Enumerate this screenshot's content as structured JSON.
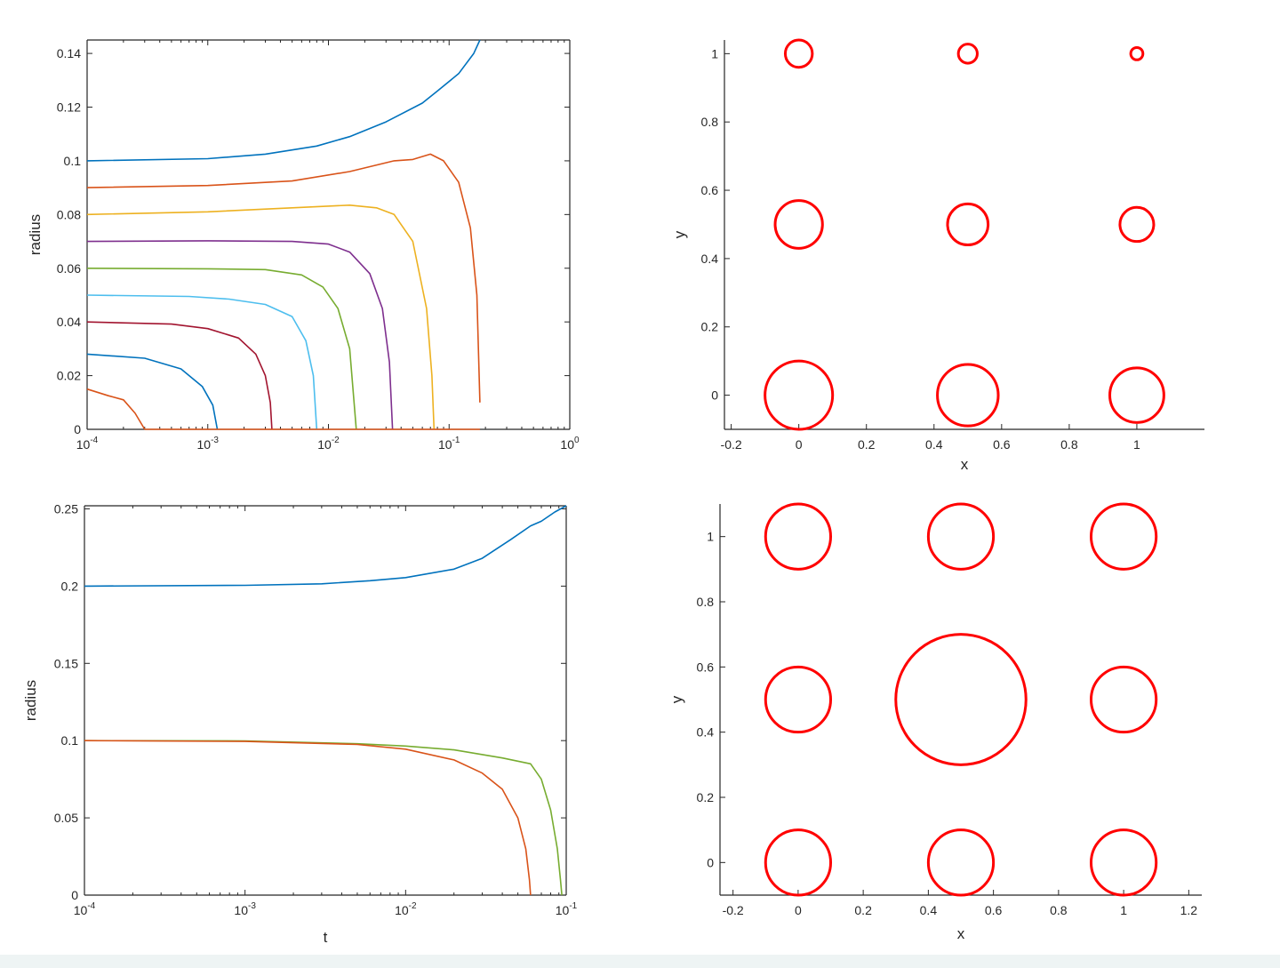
{
  "chart_data": [
    {
      "type": "line",
      "xscale": "log",
      "xlim": [
        0.0001,
        1
      ],
      "ylim": [
        0,
        0.145
      ],
      "xlabel": "",
      "ylabel": "radius",
      "xticks": [
        {
          "value": 0.0001,
          "base": "10",
          "exp": "-4"
        },
        {
          "value": 0.001,
          "base": "10",
          "exp": "-3"
        },
        {
          "value": 0.01,
          "base": "10",
          "exp": "-2"
        },
        {
          "value": 0.1,
          "base": "10",
          "exp": "-1"
        },
        {
          "value": 1,
          "base": "10",
          "exp": "0"
        }
      ],
      "yticks": [
        {
          "value": 0,
          "label": "0"
        },
        {
          "value": 0.02,
          "label": "0.02"
        },
        {
          "value": 0.04,
          "label": "0.04"
        },
        {
          "value": 0.06,
          "label": "0.06"
        },
        {
          "value": 0.08,
          "label": "0.08"
        },
        {
          "value": 0.1,
          "label": "0.1"
        },
        {
          "value": 0.12,
          "label": "0.12"
        },
        {
          "value": 0.14,
          "label": "0.14"
        }
      ],
      "series": [
        {
          "color": "#0072bd",
          "points": [
            [
              0.0001,
              0.1
            ],
            [
              0.001,
              0.1008
            ],
            [
              0.003,
              0.1025
            ],
            [
              0.008,
              0.1055
            ],
            [
              0.015,
              0.109
            ],
            [
              0.03,
              0.1145
            ],
            [
              0.06,
              0.1215
            ],
            [
              0.08,
              0.126
            ],
            [
              0.12,
              0.1325
            ],
            [
              0.16,
              0.14
            ],
            [
              0.18,
              0.145
            ]
          ]
        },
        {
          "color": "#d95319",
          "points": [
            [
              0.0001,
              0.09
            ],
            [
              0.001,
              0.0908
            ],
            [
              0.005,
              0.0925
            ],
            [
              0.015,
              0.096
            ],
            [
              0.035,
              0.1
            ],
            [
              0.05,
              0.1005
            ],
            [
              0.07,
              0.1025
            ],
            [
              0.09,
              0.1
            ],
            [
              0.12,
              0.092
            ],
            [
              0.15,
              0.075
            ],
            [
              0.17,
              0.05
            ],
            [
              0.18,
              0.01
            ]
          ]
        },
        {
          "color": "#edb120",
          "points": [
            [
              0.0001,
              0.08
            ],
            [
              0.001,
              0.081
            ],
            [
              0.005,
              0.0825
            ],
            [
              0.015,
              0.0835
            ],
            [
              0.025,
              0.0825
            ],
            [
              0.035,
              0.08
            ],
            [
              0.05,
              0.07
            ],
            [
              0.065,
              0.045
            ],
            [
              0.072,
              0.02
            ],
            [
              0.075,
              0
            ]
          ]
        },
        {
          "color": "#7e2f8e",
          "points": [
            [
              0.0001,
              0.07
            ],
            [
              0.001,
              0.0702
            ],
            [
              0.005,
              0.07
            ],
            [
              0.01,
              0.069
            ],
            [
              0.015,
              0.066
            ],
            [
              0.022,
              0.058
            ],
            [
              0.028,
              0.045
            ],
            [
              0.032,
              0.025
            ],
            [
              0.034,
              0
            ]
          ]
        },
        {
          "color": "#77ac30",
          "points": [
            [
              0.0001,
              0.06
            ],
            [
              0.001,
              0.0598
            ],
            [
              0.003,
              0.0595
            ],
            [
              0.006,
              0.0575
            ],
            [
              0.009,
              0.053
            ],
            [
              0.012,
              0.045
            ],
            [
              0.015,
              0.03
            ],
            [
              0.017,
              0
            ]
          ]
        },
        {
          "color": "#4dbeee",
          "points": [
            [
              0.0001,
              0.05
            ],
            [
              0.0007,
              0.0495
            ],
            [
              0.0015,
              0.0485
            ],
            [
              0.003,
              0.0465
            ],
            [
              0.005,
              0.042
            ],
            [
              0.0065,
              0.033
            ],
            [
              0.0075,
              0.02
            ],
            [
              0.008,
              0
            ]
          ]
        },
        {
          "color": "#a2142f",
          "points": [
            [
              0.0001,
              0.04
            ],
            [
              0.0005,
              0.0392
            ],
            [
              0.001,
              0.0375
            ],
            [
              0.0018,
              0.034
            ],
            [
              0.0025,
              0.028
            ],
            [
              0.003,
              0.02
            ],
            [
              0.0033,
              0.01
            ],
            [
              0.0034,
              0
            ]
          ]
        },
        {
          "color": "#0072bd",
          "points": [
            [
              0.0001,
              0.028
            ],
            [
              0.0003,
              0.0265
            ],
            [
              0.0006,
              0.0225
            ],
            [
              0.0009,
              0.016
            ],
            [
              0.0011,
              0.009
            ],
            [
              0.0012,
              0
            ]
          ]
        },
        {
          "color": "#d95319",
          "points": [
            [
              0.0001,
              0.015
            ],
            [
              0.00015,
              0.0125
            ],
            [
              0.0002,
              0.011
            ],
            [
              0.00025,
              0.006
            ],
            [
              0.0003,
              0
            ]
          ]
        },
        {
          "color": "#d95319",
          "points": [
            [
              0.0003,
              0
            ],
            [
              0.18,
              0
            ]
          ]
        }
      ]
    },
    {
      "type": "scatter",
      "xlim": [
        -0.22,
        1.2
      ],
      "ylim": [
        -0.1,
        1.04
      ],
      "xlabel": "x",
      "ylabel": "y",
      "xticks": [
        {
          "value": -0.2,
          "label": "-0.2"
        },
        {
          "value": 0,
          "label": "0"
        },
        {
          "value": 0.2,
          "label": "0.2"
        },
        {
          "value": 0.4,
          "label": "0.4"
        },
        {
          "value": 0.6,
          "label": "0.6"
        },
        {
          "value": 0.8,
          "label": "0.8"
        },
        {
          "value": 1,
          "label": "1"
        }
      ],
      "yticks": [
        {
          "value": 0,
          "label": "0"
        },
        {
          "value": 0.2,
          "label": "0.2"
        },
        {
          "value": 0.4,
          "label": "0.4"
        },
        {
          "value": 0.6,
          "label": "0.6"
        },
        {
          "value": 0.8,
          "label": "0.8"
        },
        {
          "value": 1,
          "label": "1"
        }
      ],
      "color": "#ff0000",
      "circles": [
        {
          "cx": 0,
          "cy": 0,
          "r": 0.1
        },
        {
          "cx": 0.5,
          "cy": 0,
          "r": 0.09
        },
        {
          "cx": 1,
          "cy": 0,
          "r": 0.08
        },
        {
          "cx": 0,
          "cy": 0.5,
          "r": 0.07
        },
        {
          "cx": 0.5,
          "cy": 0.5,
          "r": 0.06
        },
        {
          "cx": 1,
          "cy": 0.5,
          "r": 0.05
        },
        {
          "cx": 0,
          "cy": 1,
          "r": 0.04
        },
        {
          "cx": 0.5,
          "cy": 1,
          "r": 0.028
        },
        {
          "cx": 1,
          "cy": 1,
          "r": 0.018
        }
      ]
    },
    {
      "type": "line",
      "xscale": "log",
      "xlim": [
        0.0001,
        0.1
      ],
      "ylim": [
        0,
        0.252
      ],
      "xlabel": "t",
      "ylabel": "radius",
      "xticks": [
        {
          "value": 0.0001,
          "base": "10",
          "exp": "-4"
        },
        {
          "value": 0.001,
          "base": "10",
          "exp": "-3"
        },
        {
          "value": 0.01,
          "base": "10",
          "exp": "-2"
        },
        {
          "value": 0.1,
          "base": "10",
          "exp": "-1"
        }
      ],
      "yticks": [
        {
          "value": 0,
          "label": "0"
        },
        {
          "value": 0.05,
          "label": "0.05"
        },
        {
          "value": 0.1,
          "label": "0.1"
        },
        {
          "value": 0.15,
          "label": "0.15"
        },
        {
          "value": 0.2,
          "label": "0.2"
        },
        {
          "value": 0.25,
          "label": "0.25"
        }
      ],
      "series": [
        {
          "color": "#0072bd",
          "points": [
            [
              0.0001,
              0.2
            ],
            [
              0.001,
              0.2005
            ],
            [
              0.003,
              0.2015
            ],
            [
              0.006,
              0.2035
            ],
            [
              0.01,
              0.2055
            ],
            [
              0.02,
              0.211
            ],
            [
              0.03,
              0.218
            ],
            [
              0.045,
              0.23
            ],
            [
              0.06,
              0.239
            ],
            [
              0.07,
              0.242
            ],
            [
              0.085,
              0.248
            ],
            [
              0.1,
              0.252
            ]
          ]
        },
        {
          "color": "#77ac30",
          "points": [
            [
              0.0001,
              0.1
            ],
            [
              0.001,
              0.0998
            ],
            [
              0.005,
              0.098
            ],
            [
              0.01,
              0.0965
            ],
            [
              0.02,
              0.094
            ],
            [
              0.04,
              0.0888
            ],
            [
              0.06,
              0.085
            ],
            [
              0.07,
              0.075
            ],
            [
              0.08,
              0.055
            ],
            [
              0.088,
              0.03
            ],
            [
              0.092,
              0.01
            ],
            [
              0.094,
              0
            ]
          ]
        },
        {
          "color": "#d95319",
          "points": [
            [
              0.0001,
              0.1
            ],
            [
              0.001,
              0.0995
            ],
            [
              0.005,
              0.0975
            ],
            [
              0.01,
              0.0945
            ],
            [
              0.02,
              0.0875
            ],
            [
              0.03,
              0.079
            ],
            [
              0.04,
              0.0685
            ],
            [
              0.05,
              0.05
            ],
            [
              0.056,
              0.03
            ],
            [
              0.059,
              0.01
            ],
            [
              0.06,
              0
            ]
          ]
        }
      ]
    },
    {
      "type": "scatter",
      "xlim": [
        -0.24,
        1.24
      ],
      "ylim": [
        -0.1,
        1.1
      ],
      "xlabel": "x",
      "ylabel": "y",
      "xticks": [
        {
          "value": -0.2,
          "label": "-0.2"
        },
        {
          "value": 0,
          "label": "0"
        },
        {
          "value": 0.2,
          "label": "0.2"
        },
        {
          "value": 0.4,
          "label": "0.4"
        },
        {
          "value": 0.6,
          "label": "0.6"
        },
        {
          "value": 0.8,
          "label": "0.8"
        },
        {
          "value": 1,
          "label": "1"
        },
        {
          "value": 1.2,
          "label": "1.2"
        }
      ],
      "yticks": [
        {
          "value": 0,
          "label": "0"
        },
        {
          "value": 0.2,
          "label": "0.2"
        },
        {
          "value": 0.4,
          "label": "0.4"
        },
        {
          "value": 0.6,
          "label": "0.6"
        },
        {
          "value": 0.8,
          "label": "0.8"
        },
        {
          "value": 1,
          "label": "1"
        }
      ],
      "color": "#ff0000",
      "circles": [
        {
          "cx": 0,
          "cy": 0,
          "r": 0.1
        },
        {
          "cx": 0.5,
          "cy": 0,
          "r": 0.1
        },
        {
          "cx": 1,
          "cy": 0,
          "r": 0.1
        },
        {
          "cx": 0,
          "cy": 0.5,
          "r": 0.1
        },
        {
          "cx": 0.5,
          "cy": 0.5,
          "r": 0.2
        },
        {
          "cx": 1,
          "cy": 0.5,
          "r": 0.1
        },
        {
          "cx": 0,
          "cy": 1,
          "r": 0.1
        },
        {
          "cx": 0.5,
          "cy": 1,
          "r": 0.1
        },
        {
          "cx": 1,
          "cy": 1,
          "r": 0.1
        }
      ]
    }
  ]
}
